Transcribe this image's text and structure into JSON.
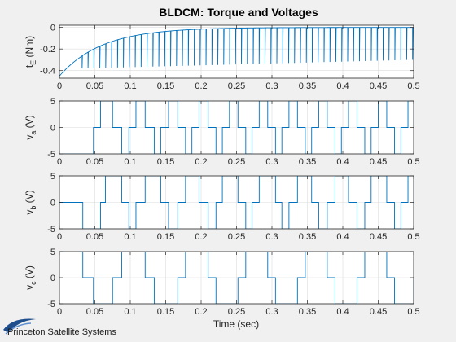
{
  "chart_data": {
    "type": "line",
    "title": "BLDCM: Torque and Voltages",
    "xlabel": "Time (sec)",
    "x_ticks": [
      "0",
      "0.05",
      "0.1",
      "0.15",
      "0.2",
      "0.25",
      "0.3",
      "0.35",
      "0.4",
      "0.45",
      "0.5"
    ],
    "xlim": [
      0,
      0.5
    ],
    "line_color": "#0072bd",
    "grid": true,
    "panels": [
      {
        "ylabel": "t",
        "ylabel_sub": "E",
        "ylabel_unit": "(Nm)",
        "ylim": [
          -0.47,
          0.02
        ],
        "y_ticks": [
          "-0.4",
          "-0.2",
          "0"
        ],
        "y_tick_values": [
          -0.4,
          -0.2,
          0
        ],
        "series": {
          "kind": "torque",
          "initial_value": -0.45,
          "time_constant": 0.06,
          "commutation_period": 0.00833,
          "first_dip": 0.032,
          "dip_depth": [
            -0.38,
            -0.3
          ]
        }
      },
      {
        "ylabel": "v",
        "ylabel_sub": "a",
        "ylabel_unit": "(V)",
        "ylim": [
          -5,
          5
        ],
        "y_ticks": [
          "-5",
          "0",
          "5"
        ],
        "y_tick_values": [
          -5,
          0,
          5
        ],
        "series": {
          "kind": "voltage",
          "steps": [
            [
              0,
              -5
            ],
            [
              0.048,
              0
            ],
            [
              0.058,
              5
            ],
            [
              0.075,
              0
            ],
            [
              0.088,
              -5
            ],
            [
              0.098,
              0
            ],
            [
              0.108,
              5
            ],
            [
              0.121,
              0
            ],
            [
              0.134,
              -5
            ],
            [
              0.143,
              0
            ],
            [
              0.154,
              5
            ],
            [
              0.167,
              0
            ],
            [
              0.178,
              -5
            ],
            [
              0.187,
              0
            ],
            [
              0.197,
              5
            ],
            [
              0.21,
              0
            ],
            [
              0.221,
              -5
            ],
            [
              0.23,
              0
            ],
            [
              0.24,
              5
            ],
            [
              0.252,
              0
            ],
            [
              0.263,
              -5
            ],
            [
              0.272,
              0
            ],
            [
              0.282,
              5
            ],
            [
              0.294,
              0
            ],
            [
              0.305,
              -5
            ],
            [
              0.314,
              0
            ],
            [
              0.324,
              5
            ],
            [
              0.336,
              0
            ],
            [
              0.347,
              -5
            ],
            [
              0.356,
              0
            ],
            [
              0.366,
              5
            ],
            [
              0.378,
              0
            ],
            [
              0.389,
              -5
            ],
            [
              0.398,
              0
            ],
            [
              0.408,
              5
            ],
            [
              0.42,
              0
            ],
            [
              0.431,
              -5
            ],
            [
              0.44,
              0
            ],
            [
              0.45,
              5
            ],
            [
              0.462,
              0
            ],
            [
              0.473,
              -5
            ],
            [
              0.482,
              0
            ],
            [
              0.492,
              5
            ],
            [
              0.5,
              5
            ]
          ]
        }
      },
      {
        "ylabel": "v",
        "ylabel_sub": "b",
        "ylabel_unit": "(V)",
        "ylim": [
          -5,
          5
        ],
        "y_ticks": [
          "-5",
          "0",
          "5"
        ],
        "y_tick_values": [
          -5,
          0,
          5
        ],
        "series": {
          "kind": "voltage",
          "steps": [
            [
              0,
              0
            ],
            [
              0.033,
              -5
            ],
            [
              0.048,
              -5
            ],
            [
              0.058,
              0
            ],
            [
              0.065,
              5
            ],
            [
              0.075,
              5
            ],
            [
              0.088,
              0
            ],
            [
              0.098,
              -5
            ],
            [
              0.108,
              0
            ],
            [
              0.121,
              5
            ],
            [
              0.134,
              5
            ],
            [
              0.143,
              0
            ],
            [
              0.154,
              -5
            ],
            [
              0.167,
              0
            ],
            [
              0.178,
              5
            ],
            [
              0.187,
              5
            ],
            [
              0.197,
              0
            ],
            [
              0.21,
              -5
            ],
            [
              0.221,
              0
            ],
            [
              0.23,
              5
            ],
            [
              0.24,
              5
            ],
            [
              0.252,
              0
            ],
            [
              0.263,
              -5
            ],
            [
              0.272,
              0
            ],
            [
              0.282,
              5
            ],
            [
              0.294,
              5
            ],
            [
              0.305,
              0
            ],
            [
              0.314,
              -5
            ],
            [
              0.324,
              0
            ],
            [
              0.336,
              5
            ],
            [
              0.347,
              5
            ],
            [
              0.356,
              0
            ],
            [
              0.366,
              -5
            ],
            [
              0.378,
              0
            ],
            [
              0.389,
              5
            ],
            [
              0.398,
              5
            ],
            [
              0.408,
              0
            ],
            [
              0.42,
              -5
            ],
            [
              0.431,
              0
            ],
            [
              0.44,
              5
            ],
            [
              0.45,
              5
            ],
            [
              0.462,
              0
            ],
            [
              0.473,
              -5
            ],
            [
              0.482,
              0
            ],
            [
              0.492,
              5
            ],
            [
              0.5,
              5
            ]
          ]
        }
      },
      {
        "ylabel": "v",
        "ylabel_sub": "c",
        "ylabel_unit": "(V)",
        "ylim": [
          -5,
          5
        ],
        "y_ticks": [
          "-5",
          "0",
          "5"
        ],
        "y_tick_values": [
          -5,
          0,
          5
        ],
        "series": {
          "kind": "voltage",
          "steps": [
            [
              0,
              5
            ],
            [
              0.033,
              0
            ],
            [
              0.048,
              -5
            ],
            [
              0.065,
              -5
            ],
            [
              0.075,
              0
            ],
            [
              0.088,
              5
            ],
            [
              0.108,
              5
            ],
            [
              0.121,
              0
            ],
            [
              0.134,
              -5
            ],
            [
              0.154,
              -5
            ],
            [
              0.167,
              0
            ],
            [
              0.178,
              5
            ],
            [
              0.197,
              5
            ],
            [
              0.21,
              0
            ],
            [
              0.221,
              -5
            ],
            [
              0.24,
              -5
            ],
            [
              0.252,
              0
            ],
            [
              0.263,
              5
            ],
            [
              0.282,
              5
            ],
            [
              0.294,
              0
            ],
            [
              0.305,
              -5
            ],
            [
              0.324,
              -5
            ],
            [
              0.336,
              0
            ],
            [
              0.347,
              5
            ],
            [
              0.366,
              5
            ],
            [
              0.378,
              0
            ],
            [
              0.389,
              -5
            ],
            [
              0.408,
              -5
            ],
            [
              0.42,
              0
            ],
            [
              0.431,
              5
            ],
            [
              0.45,
              5
            ],
            [
              0.462,
              0
            ],
            [
              0.473,
              -5
            ],
            [
              0.492,
              -5
            ],
            [
              0.5,
              0
            ]
          ]
        }
      }
    ]
  },
  "logo": {
    "text": "Princeton Satellite Systems"
  }
}
